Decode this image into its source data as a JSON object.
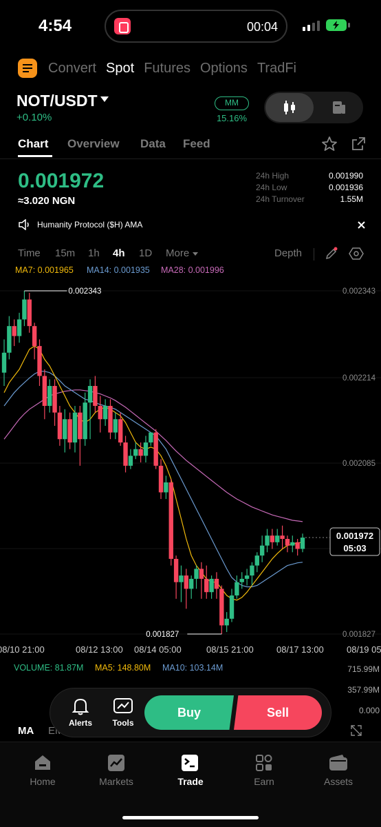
{
  "status": {
    "time": "4:54",
    "timer": "00:04"
  },
  "topnav": [
    "Convert",
    "Spot",
    "Futures",
    "Options",
    "TradFi"
  ],
  "pair": {
    "name": "NOT/USDT",
    "change": "+0.10%",
    "mm_label": "MM",
    "mm_value": "15.16%"
  },
  "tabs": [
    "Chart",
    "Overview",
    "Data",
    "Feed"
  ],
  "price": {
    "last": "0.001972",
    "fiat": "≈3.020 NGN"
  },
  "stats": [
    {
      "label": "24h High",
      "value": "0.001990"
    },
    {
      "label": "24h Low",
      "value": "0.001936"
    },
    {
      "label": "24h Turnover",
      "value": "1.55M"
    }
  ],
  "announcement": "Humanity Protocol ($H) AMA",
  "timeframes": {
    "items": [
      "Time",
      "15m",
      "1h",
      "4h",
      "1D",
      "More"
    ],
    "depth": "Depth"
  },
  "ma_legend": {
    "ma7": "MA7: 0.001965",
    "ma14": "MA14: 0.001935",
    "ma28": "MA28: 0.001996"
  },
  "colors": {
    "up": "#2ebd85",
    "down": "#f6465d",
    "ma7": "#f0b90b",
    "ma14": "#6b9bd1",
    "ma28": "#c76ab8"
  },
  "chart_data": {
    "type": "candlestick",
    "y_ticks": [
      "0.002343",
      "0.002214",
      "0.002085",
      "0.001827"
    ],
    "ylim": [
      0.001827,
      0.002343
    ],
    "x_ticks": [
      "08/10 21:00",
      "08/12 13:00",
      "08/14 05:00",
      "08/15 21:00",
      "08/17 13:00",
      "08/19 05"
    ],
    "high_marker": "0.002343",
    "low_marker": "0.001827",
    "current_price": "0.001972",
    "countdown": "05:03",
    "candles": [
      [
        0.00222,
        0.00225,
        0.0022,
        0.00227
      ],
      [
        0.00225,
        0.00229,
        0.00224,
        0.002305
      ],
      [
        0.00229,
        0.002275,
        0.00226,
        0.0023
      ],
      [
        0.002275,
        0.0023,
        0.002265,
        0.00231
      ],
      [
        0.0023,
        0.00233,
        0.00229,
        0.002343
      ],
      [
        0.00233,
        0.00229,
        0.00228,
        0.00234
      ],
      [
        0.00229,
        0.00226,
        0.00224,
        0.002295
      ],
      [
        0.00226,
        0.002215,
        0.0022,
        0.00227
      ],
      [
        0.002215,
        0.00217,
        0.00215,
        0.002225
      ],
      [
        0.00217,
        0.0022,
        0.00216,
        0.00221
      ],
      [
        0.0022,
        0.00216,
        0.00214,
        0.00221
      ],
      [
        0.00216,
        0.00212,
        0.00211,
        0.00217
      ],
      [
        0.00212,
        0.00215,
        0.0021,
        0.002165
      ],
      [
        0.00215,
        0.002115,
        0.002105,
        0.00216
      ],
      [
        0.002115,
        0.00216,
        0.0021,
        0.00217
      ],
      [
        0.00216,
        0.00212,
        0.00208,
        0.00217
      ],
      [
        0.00212,
        0.002175,
        0.00211,
        0.00219
      ],
      [
        0.002175,
        0.0022,
        0.00212,
        0.00221
      ],
      [
        0.0022,
        0.00217,
        0.00216,
        0.002215
      ],
      [
        0.00217,
        0.00215,
        0.00213,
        0.002185
      ],
      [
        0.00215,
        0.00217,
        0.00214,
        0.00218
      ],
      [
        0.00217,
        0.00213,
        0.00212,
        0.00218
      ],
      [
        0.00213,
        0.00215,
        0.00212,
        0.00216
      ],
      [
        0.00215,
        0.002115,
        0.00211,
        0.00216
      ],
      [
        0.002115,
        0.00208,
        0.00207,
        0.002125
      ],
      [
        0.00208,
        0.002095,
        0.002075,
        0.002105
      ],
      [
        0.002095,
        0.002105,
        0.00209,
        0.002115
      ],
      [
        0.002105,
        0.002095,
        0.002085,
        0.002115
      ],
      [
        0.002095,
        0.002115,
        0.002085,
        0.002125
      ],
      [
        0.002115,
        0.00213,
        0.00211,
        0.00213
      ],
      [
        0.00213,
        0.00208,
        0.002075,
        0.002135
      ],
      [
        0.00208,
        0.00204,
        0.00203,
        0.00209
      ],
      [
        0.00204,
        0.002055,
        0.00203,
        0.002065
      ],
      [
        0.002055,
        0.00194,
        0.00193,
        0.00206
      ],
      [
        0.00194,
        0.001905,
        0.00188,
        0.001945
      ],
      [
        0.001905,
        0.001915,
        0.001875,
        0.00193
      ],
      [
        0.001915,
        0.001895,
        0.001865,
        0.001925
      ],
      [
        0.001895,
        0.00191,
        0.00188,
        0.001915
      ],
      [
        0.00191,
        0.001925,
        0.001895,
        0.00193
      ],
      [
        0.001925,
        0.00191,
        0.00188,
        0.001935
      ],
      [
        0.00191,
        0.00189,
        0.00188,
        0.00193
      ],
      [
        0.00189,
        0.00191,
        0.00188,
        0.001915
      ],
      [
        0.00191,
        0.001895,
        0.00188,
        0.00192
      ],
      [
        0.001895,
        0.00184,
        0.001827,
        0.0019
      ],
      [
        0.00184,
        0.00185,
        0.00183,
        0.00186
      ],
      [
        0.00185,
        0.001885,
        0.001845,
        0.001895
      ],
      [
        0.001885,
        0.001905,
        0.00188,
        0.001915
      ],
      [
        0.001905,
        0.00191,
        0.001895,
        0.00192
      ],
      [
        0.00191,
        0.001915,
        0.0019,
        0.001925
      ],
      [
        0.001915,
        0.00193,
        0.0019,
        0.001935
      ],
      [
        0.00193,
        0.001945,
        0.00192,
        0.00195
      ],
      [
        0.001945,
        0.00196,
        0.001935,
        0.001975
      ],
      [
        0.00196,
        0.001975,
        0.00195,
        0.001985
      ],
      [
        0.001975,
        0.001965,
        0.001955,
        0.001985
      ],
      [
        0.001965,
        0.001975,
        0.00196,
        0.001985
      ],
      [
        0.001975,
        0.00197,
        0.001955,
        0.00199
      ],
      [
        0.00197,
        0.00196,
        0.00195,
        0.001975
      ],
      [
        0.00196,
        0.001965,
        0.00195,
        0.001975
      ],
      [
        0.001965,
        0.001955,
        0.001945,
        0.00197
      ],
      [
        0.001955,
        0.001972,
        0.00195,
        0.001978
      ]
    ],
    "ma7": [
      0.00219,
      0.002205,
      0.002215,
      0.002225,
      0.00224,
      0.002255,
      0.00226,
      0.002255,
      0.00224,
      0.00223,
      0.002215,
      0.0022,
      0.002185,
      0.00217,
      0.00216,
      0.00215,
      0.002145,
      0.00215,
      0.00216,
      0.002165,
      0.002168,
      0.002165,
      0.00216,
      0.002155,
      0.002145,
      0.00213,
      0.002115,
      0.002108,
      0.002105,
      0.002108,
      0.002105,
      0.002095,
      0.00208,
      0.00206,
      0.00203,
      0.002,
      0.00197,
      0.001945,
      0.00193,
      0.00192,
      0.00191,
      0.001905,
      0.001905,
      0.001895,
      0.001885,
      0.00188,
      0.001878,
      0.001882,
      0.00189,
      0.0019,
      0.00191,
      0.00192,
      0.00193,
      0.00194,
      0.001948,
      0.001955,
      0.00196,
      0.001962,
      0.001964,
      0.001965
    ],
    "ma14": [
      0.00217,
      0.00218,
      0.00219,
      0.002198,
      0.002205,
      0.002212,
      0.002218,
      0.002222,
      0.002222,
      0.00222,
      0.002215,
      0.002208,
      0.0022,
      0.002195,
      0.00219,
      0.002185,
      0.00218,
      0.002178,
      0.002175,
      0.002172,
      0.00217,
      0.002168,
      0.002165,
      0.00216,
      0.002155,
      0.00215,
      0.002145,
      0.00214,
      0.002135,
      0.00213,
      0.002125,
      0.002115,
      0.002105,
      0.00209,
      0.002075,
      0.00206,
      0.002045,
      0.00203,
      0.002015,
      0.002,
      0.001985,
      0.00197,
      0.001955,
      0.00194,
      0.001925,
      0.001912,
      0.001905,
      0.0019,
      0.001898,
      0.001898,
      0.0019,
      0.001905,
      0.00191,
      0.001915,
      0.00192,
      0.001925,
      0.00193,
      0.001932,
      0.001934,
      0.001935
    ],
    "ma28": [
      0.00212,
      0.00213,
      0.00214,
      0.00215,
      0.002158,
      0.002165,
      0.00217,
      0.002175,
      0.00218,
      0.002185,
      0.002188,
      0.00219,
      0.002192,
      0.002193,
      0.002194,
      0.002194,
      0.002193,
      0.002192,
      0.00219,
      0.002188,
      0.002185,
      0.002182,
      0.002178,
      0.002173,
      0.002168,
      0.002162,
      0.002156,
      0.00215,
      0.002144,
      0.002138,
      0.002132,
      0.002125,
      0.002118,
      0.00211,
      0.002102,
      0.002095,
      0.002088,
      0.002082,
      0.002076,
      0.00207,
      0.002064,
      0.002058,
      0.002052,
      0.002046,
      0.00204,
      0.002035,
      0.00203,
      0.002026,
      0.002022,
      0.002018,
      0.002015,
      0.002012,
      0.002009,
      0.002006,
      0.002004,
      0.002002,
      0.002,
      0.001998,
      0.001997,
      0.001996
    ]
  },
  "volume": {
    "legend_vol": "VOLUME: 81.87M",
    "legend_ma5": "MA5: 148.80M",
    "legend_ma10": "MA10: 103.14M",
    "ticks": [
      "715.99M",
      "357.99M",
      "0.000"
    ]
  },
  "indicator_tabs": [
    "MA",
    "EM"
  ],
  "tradebar": {
    "alerts": "Alerts",
    "tools": "Tools",
    "buy": "Buy",
    "sell": "Sell"
  },
  "bottom_nav": [
    "Home",
    "Markets",
    "Trade",
    "Earn",
    "Assets"
  ]
}
